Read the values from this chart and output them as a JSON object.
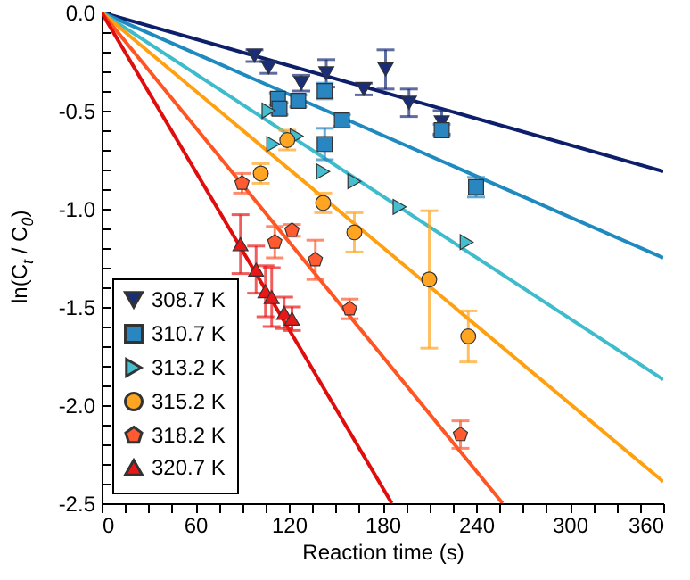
{
  "chart_data": {
    "type": "scatter",
    "xlabel": "Reaction time (s)",
    "ylabel": "ln(C$_{t}$ / C$_{0}$)",
    "xlim": [
      0,
      360
    ],
    "ylim": [
      -2.5,
      0
    ],
    "xticks": [
      0,
      {
        "value": 15,
        "label": null
      },
      {
        "value": 30,
        "label": null
      },
      {
        "value": 45,
        "label": null
      },
      60,
      {
        "value": 75,
        "label": null
      },
      {
        "value": 90,
        "label": null
      },
      {
        "value": 105,
        "label": null
      },
      120,
      {
        "value": 135,
        "label": null
      },
      {
        "value": 150,
        "label": null
      },
      {
        "value": 165,
        "label": null
      },
      180,
      {
        "value": 195,
        "label": null
      },
      {
        "value": 210,
        "label": null
      },
      {
        "value": 225,
        "label": null
      },
      240,
      {
        "value": 255,
        "label": null
      },
      {
        "value": 270,
        "label": null
      },
      {
        "value": 285,
        "label": null
      },
      300,
      {
        "value": 315,
        "label": null
      },
      {
        "value": 330,
        "label": null
      },
      {
        "value": 345,
        "label": null
      },
      360
    ],
    "yticks": [
      {
        "value": -2.5,
        "label": "-2.5"
      },
      {
        "value": -2.4,
        "label": null
      },
      {
        "value": -2.3,
        "label": null
      },
      {
        "value": -2.2,
        "label": null
      },
      {
        "value": -2.1,
        "label": null
      },
      {
        "value": -2.0,
        "label": "-2.0"
      },
      {
        "value": -1.9,
        "label": null
      },
      {
        "value": -1.8,
        "label": null
      },
      {
        "value": -1.7,
        "label": null
      },
      {
        "value": -1.6,
        "label": null
      },
      {
        "value": -1.5,
        "label": "-1.5"
      },
      {
        "value": -1.4,
        "label": null
      },
      {
        "value": -1.3,
        "label": null
      },
      {
        "value": -1.2,
        "label": null
      },
      {
        "value": -1.1,
        "label": null
      },
      {
        "value": -1.0,
        "label": "-1.0"
      },
      {
        "value": -0.9,
        "label": null
      },
      {
        "value": -0.8,
        "label": null
      },
      {
        "value": -0.7,
        "label": null
      },
      {
        "value": -0.6,
        "label": null
      },
      {
        "value": -0.5,
        "label": "-0.5"
      },
      {
        "value": -0.4,
        "label": null
      },
      {
        "value": -0.3,
        "label": null
      },
      {
        "value": -0.2,
        "label": null
      },
      {
        "value": -0.1,
        "label": null
      },
      {
        "value": 0,
        "label": "0.0"
      }
    ],
    "grid": false,
    "legend": "bottom left",
    "line_style": "solid",
    "series": [
      {
        "type": "line",
        "color": "#0d1f6b",
        "x": [
          0,
          360
        ],
        "values": [
          0,
          -0.81
        ]
      },
      {
        "type": "line",
        "color": "#1f8ac0",
        "x": [
          0,
          360
        ],
        "values": [
          0,
          -1.25
        ]
      },
      {
        "type": "line",
        "color": "#3fbccc",
        "x": [
          0,
          360
        ],
        "values": [
          0,
          -1.87
        ]
      },
      {
        "type": "line",
        "color": "#ffa010",
        "x": [
          0,
          360
        ],
        "values": [
          0,
          -2.39
        ]
      },
      {
        "type": "line",
        "color": "#ff5522",
        "x": [
          0,
          257
        ],
        "values": [
          0,
          -2.5
        ]
      },
      {
        "type": "line",
        "color": "#e00d0d",
        "x": [
          0,
          186
        ],
        "values": [
          0,
          -2.5
        ]
      },
      {
        "name": "308.7 K",
        "color": "#1a2e78",
        "marker": "triangle-down",
        "x": [
          98,
          107,
          128,
          144,
          168,
          182,
          197,
          218
        ],
        "values": [
          -0.22,
          -0.28,
          -0.36,
          -0.31,
          -0.39,
          -0.29,
          -0.46,
          -0.56
        ],
        "errors": [
          0.03,
          0.03,
          0.04,
          0.07,
          0.03,
          0.1,
          0.07,
          0.06
        ]
      },
      {
        "name": "310.7 K",
        "color": "#2a86c0",
        "marker": "square",
        "x": [
          113,
          114,
          126,
          143,
          143,
          154,
          218,
          240
        ],
        "values": [
          -0.44,
          -0.49,
          -0.45,
          -0.4,
          -0.67,
          -0.55,
          -0.6,
          -0.89
        ],
        "errors": [
          0.03,
          0.03,
          0.03,
          0.04,
          0.08,
          0.03,
          0.03,
          0.05
        ]
      },
      {
        "name": "313.2 K",
        "color": "#45bfd0",
        "marker": "triangle-right",
        "x": [
          107,
          110,
          125,
          142,
          162,
          191,
          234
        ],
        "values": [
          -0.5,
          -0.67,
          -0.63,
          -0.81,
          -0.86,
          -0.99,
          -1.17
        ]
      },
      {
        "name": "315.2 K",
        "color": "#ffa522",
        "marker": "circle",
        "x": [
          102,
          119,
          142,
          162,
          210,
          235
        ],
        "values": [
          -0.82,
          -0.65,
          -0.97,
          -1.12,
          -1.36,
          -1.65
        ],
        "errors": [
          0.05,
          0.05,
          0.05,
          0.1,
          0.35,
          0.13
        ]
      },
      {
        "name": "318.2 K",
        "color": "#ff5a30",
        "x": [
          90,
          111,
          122,
          137,
          159,
          230
        ],
        "values": [
          -0.87,
          -1.17,
          -1.11,
          -1.26,
          -1.51,
          -2.15
        ],
        "errors": [
          0.05,
          0.08,
          0.03,
          0.1,
          0.05,
          0.07
        ]
      },
      {
        "name": "320.7 K",
        "color": "#e81818",
        "marker": "triangle",
        "x": [
          89,
          99,
          105,
          109,
          117,
          122
        ],
        "values": [
          -1.18,
          -1.31,
          -1.42,
          -1.45,
          -1.53,
          -1.56
        ],
        "errors": [
          0.15,
          0.12,
          0.13,
          0.15,
          0.08,
          0.06
        ]
      }
    ]
  }
}
